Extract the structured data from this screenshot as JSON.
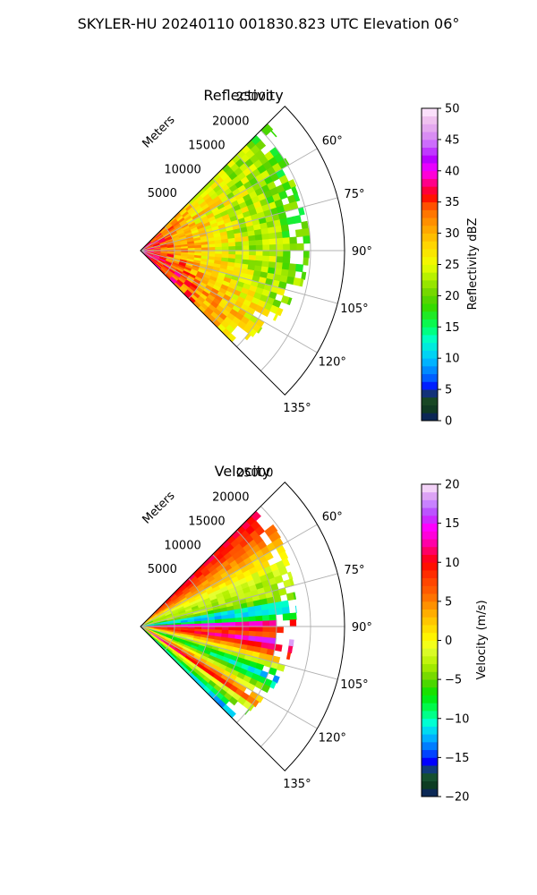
{
  "figure": {
    "title": "SKYLER-HU  20240110  001830.823 UTC Elevation 06°"
  },
  "colors": {
    "grid": "#b0b0b0",
    "axis": "#000000",
    "background": "#ffffff"
  },
  "chart_data": [
    {
      "type": "heatmap",
      "title": "Reflectivity",
      "radial_axis_label": "Meters",
      "radial_ticks": [
        5000,
        10000,
        15000,
        20000,
        25000
      ],
      "radial_tick_labels": [
        "5000",
        "10000",
        "15000",
        "20000",
        "25000"
      ],
      "r_max": 30000,
      "azimuth_range": [
        45,
        135
      ],
      "azimuth_ticks": [
        60,
        75,
        90,
        105,
        120,
        135
      ],
      "azimuth_tick_labels": [
        "60°",
        "75°",
        "90°",
        "105°",
        "120°",
        "135°"
      ],
      "grid": true,
      "colorbar": {
        "label": "Reflectivity dBZ",
        "range": [
          0,
          50
        ],
        "ticks": [
          0,
          5,
          10,
          15,
          20,
          25,
          30,
          35,
          40,
          45,
          50
        ],
        "tick_labels": [
          "0",
          "5",
          "10",
          "15",
          "20",
          "25",
          "30",
          "35",
          "40",
          "45",
          "50"
        ],
        "color_stops": [
          [
            0,
            "#0a1e6e"
          ],
          [
            2,
            "#103c1e"
          ],
          [
            4,
            "#1e5028"
          ],
          [
            5,
            "#0000ff"
          ],
          [
            7,
            "#0064ff"
          ],
          [
            10,
            "#00c8ff"
          ],
          [
            13,
            "#00ffc8"
          ],
          [
            15,
            "#00ff64"
          ],
          [
            18,
            "#32dc00"
          ],
          [
            20,
            "#64d200"
          ],
          [
            23,
            "#b4f000"
          ],
          [
            25,
            "#f0ff00"
          ],
          [
            28,
            "#ffd700"
          ],
          [
            31,
            "#ffa000"
          ],
          [
            34,
            "#ff6400"
          ],
          [
            36,
            "#ff0000"
          ],
          [
            38,
            "#ff0080"
          ],
          [
            40,
            "#ff00ff"
          ],
          [
            42,
            "#b400ff"
          ],
          [
            44,
            "#c864ff"
          ],
          [
            46,
            "#dc96f0"
          ],
          [
            48,
            "#eebeee"
          ],
          [
            50,
            "#fff0ff"
          ]
        ]
      },
      "field": {
        "near_value": 34,
        "mid_value": 26,
        "far_value": 19,
        "south_enhancement": 5,
        "noise": 4,
        "range_extent_by_azimuth": [
          [
            45,
            26500
          ],
          [
            55,
            25500
          ],
          [
            70,
            24500
          ],
          [
            85,
            25000
          ],
          [
            100,
            24500
          ],
          [
            115,
            22500
          ],
          [
            125,
            21000
          ],
          [
            135,
            19500
          ]
        ]
      }
    },
    {
      "type": "heatmap",
      "title": "Velocity",
      "radial_axis_label": "Meters",
      "radial_ticks": [
        5000,
        10000,
        15000,
        20000,
        25000
      ],
      "radial_tick_labels": [
        "5000",
        "10000",
        "15000",
        "20000",
        "25000"
      ],
      "r_max": 30000,
      "azimuth_range": [
        45,
        135
      ],
      "azimuth_ticks": [
        60,
        75,
        90,
        105,
        120,
        135
      ],
      "azimuth_tick_labels": [
        "60°",
        "75°",
        "90°",
        "105°",
        "120°",
        "135°"
      ],
      "grid": true,
      "colorbar": {
        "label": "Velocity (m/s)",
        "range": [
          -20,
          20
        ],
        "ticks": [
          -20,
          -15,
          -10,
          -5,
          0,
          5,
          10,
          15,
          20
        ],
        "tick_labels": [
          "−20",
          "−15",
          "−10",
          "−5",
          "0",
          "5",
          "10",
          "15",
          "20"
        ],
        "color_stops": [
          [
            -20,
            "#0a1e6e"
          ],
          [
            -18.5,
            "#0d3c23"
          ],
          [
            -17,
            "#195a37"
          ],
          [
            -15.5,
            "#0000ff"
          ],
          [
            -14,
            "#0064ff"
          ],
          [
            -12,
            "#00c8ff"
          ],
          [
            -10.5,
            "#00ffd2"
          ],
          [
            -9,
            "#00ff64"
          ],
          [
            -7,
            "#00e600"
          ],
          [
            -5,
            "#64d200"
          ],
          [
            -3,
            "#b4f000"
          ],
          [
            -1,
            "#e6ff32"
          ],
          [
            0,
            "#ffff00"
          ],
          [
            2,
            "#ffd200"
          ],
          [
            4,
            "#ffa000"
          ],
          [
            6,
            "#ff6400"
          ],
          [
            8,
            "#ff3c00"
          ],
          [
            10,
            "#ff0000"
          ],
          [
            11.5,
            "#ff0064"
          ],
          [
            13,
            "#ff00c8"
          ],
          [
            14.5,
            "#ff00ff"
          ],
          [
            16,
            "#b43cff"
          ],
          [
            17.5,
            "#c882ff"
          ],
          [
            19,
            "#e6b4f0"
          ],
          [
            20,
            "#fff0ff"
          ]
        ]
      },
      "field": {
        "noise": 1.2,
        "range_extent_by_azimuth": [
          [
            45,
            25000
          ],
          [
            55,
            24500
          ],
          [
            70,
            23500
          ],
          [
            85,
            23000
          ],
          [
            100,
            22500
          ],
          [
            115,
            21500
          ],
          [
            125,
            20500
          ],
          [
            135,
            19500
          ]
        ]
      }
    }
  ]
}
